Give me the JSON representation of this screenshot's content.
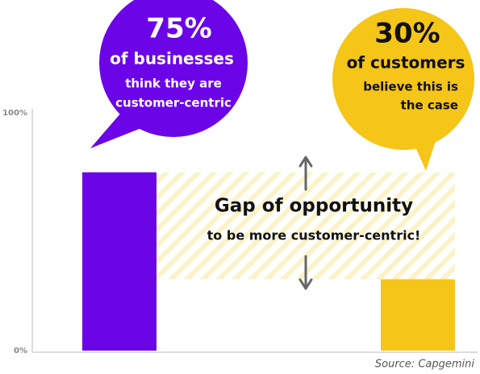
{
  "chart_data": {
    "type": "bar",
    "categories": [
      null,
      null
    ],
    "values": [
      75,
      30
    ],
    "value_labels": [
      "75%",
      "30%"
    ],
    "colors": [
      "#6b05e8",
      "#f5c518"
    ],
    "ylim": [
      0,
      100
    ],
    "yticks": [
      {
        "value": 0,
        "label": "0%"
      },
      {
        "value": 100,
        "label": "100%"
      }
    ],
    "annotations": [
      {
        "lines": [
          "of businesses",
          "think they are",
          "customer-centric"
        ]
      },
      {
        "lines": [
          "of customers",
          "believe this is",
          "the case"
        ]
      }
    ],
    "gap_title": "Gap of opportunity",
    "gap_subtitle": "to be more customer-centric!",
    "source": "Source: Capgemini"
  }
}
